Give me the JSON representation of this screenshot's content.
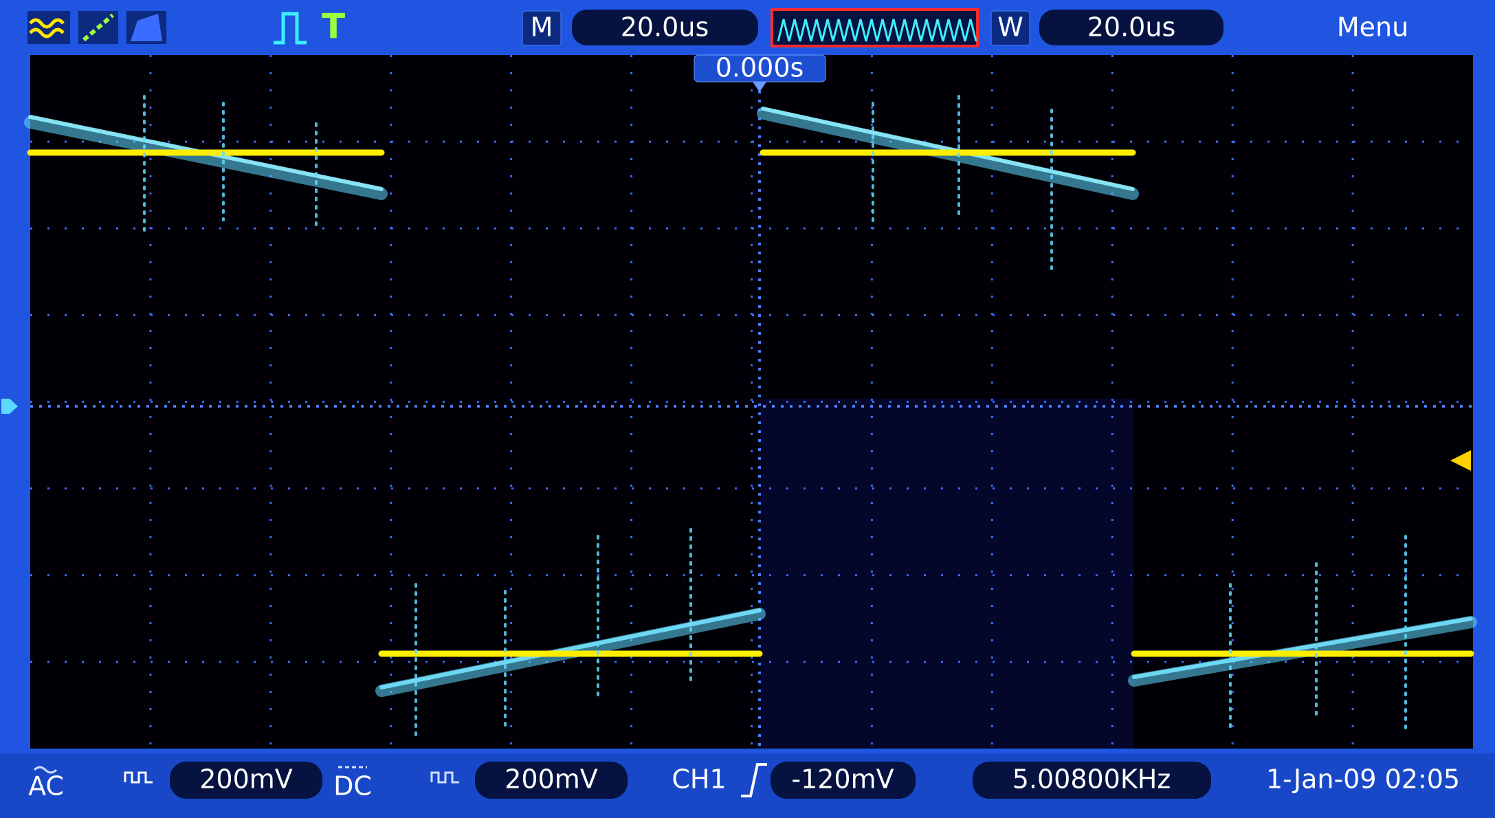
{
  "top_bar": {
    "m_label": "M",
    "main_timebase": "20.0us",
    "w_label": "W",
    "window_timebase": "20.0us",
    "menu": "Menu"
  },
  "trigger_position": "0.000s",
  "bottom_bar": {
    "ch1_coupling": "AC",
    "ch1_scale": "200mV",
    "ch2_coupling": "DC",
    "ch2_scale": "200mV",
    "trigger_source": "CH1",
    "trigger_level": "-120mV",
    "frequency": "5.00800KHz",
    "datetime": "1-Jan-09 02:05"
  }
}
